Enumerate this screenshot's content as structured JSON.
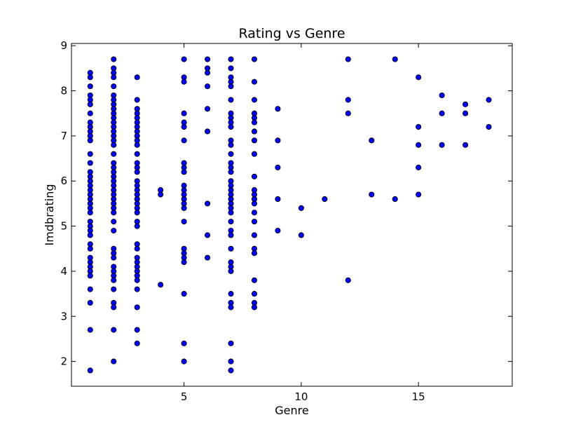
{
  "chart_data": {
    "type": "scatter",
    "title": "Rating vs Genre",
    "xlabel": "Genre",
    "ylabel": "Imdbrating",
    "xlim": [
      0.2,
      19
    ],
    "ylim": [
      1.45,
      9.05
    ],
    "xticks": [
      5,
      10,
      15
    ],
    "yticks": [
      2,
      3,
      4,
      5,
      6,
      7,
      8,
      9
    ],
    "grid": false,
    "marker_color": "#0000ff",
    "marker_edge_color": "#000000",
    "points": [
      [
        1,
        8.4
      ],
      [
        1,
        8.3
      ],
      [
        1,
        8.1
      ],
      [
        1,
        7.9
      ],
      [
        1,
        7.8
      ],
      [
        1,
        7.7
      ],
      [
        1,
        7.5
      ],
      [
        1,
        7.3
      ],
      [
        1,
        7.2
      ],
      [
        1,
        7.1
      ],
      [
        1,
        7.0
      ],
      [
        1,
        6.9
      ],
      [
        1,
        6.6
      ],
      [
        1,
        6.4
      ],
      [
        1,
        6.2
      ],
      [
        1,
        6.1
      ],
      [
        1,
        6.0
      ],
      [
        1,
        5.9
      ],
      [
        1,
        5.8
      ],
      [
        1,
        5.7
      ],
      [
        1,
        5.6
      ],
      [
        1,
        5.5
      ],
      [
        1,
        5.4
      ],
      [
        1,
        5.3
      ],
      [
        1,
        5.1
      ],
      [
        1,
        5.0
      ],
      [
        1,
        4.9
      ],
      [
        1,
        4.8
      ],
      [
        1,
        4.6
      ],
      [
        1,
        4.5
      ],
      [
        1,
        4.3
      ],
      [
        1,
        4.2
      ],
      [
        1,
        4.1
      ],
      [
        1,
        4.0
      ],
      [
        1,
        3.9
      ],
      [
        1,
        3.6
      ],
      [
        1,
        3.3
      ],
      [
        1,
        2.7
      ],
      [
        1,
        1.8
      ],
      [
        2,
        8.7
      ],
      [
        2,
        8.5
      ],
      [
        2,
        8.4
      ],
      [
        2,
        8.3
      ],
      [
        2,
        8.1
      ],
      [
        2,
        7.9
      ],
      [
        2,
        7.8
      ],
      [
        2,
        7.7
      ],
      [
        2,
        7.6
      ],
      [
        2,
        7.5
      ],
      [
        2,
        7.4
      ],
      [
        2,
        7.3
      ],
      [
        2,
        7.2
      ],
      [
        2,
        7.1
      ],
      [
        2,
        7.0
      ],
      [
        2,
        6.9
      ],
      [
        2,
        6.8
      ],
      [
        2,
        6.6
      ],
      [
        2,
        6.4
      ],
      [
        2,
        6.3
      ],
      [
        2,
        6.2
      ],
      [
        2,
        6.1
      ],
      [
        2,
        6.0
      ],
      [
        2,
        5.9
      ],
      [
        2,
        5.8
      ],
      [
        2,
        5.7
      ],
      [
        2,
        5.6
      ],
      [
        2,
        5.5
      ],
      [
        2,
        5.4
      ],
      [
        2,
        5.3
      ],
      [
        2,
        5.1
      ],
      [
        2,
        4.9
      ],
      [
        2,
        4.5
      ],
      [
        2,
        4.4
      ],
      [
        2,
        4.3
      ],
      [
        2,
        4.1
      ],
      [
        2,
        4.0
      ],
      [
        2,
        3.9
      ],
      [
        2,
        3.8
      ],
      [
        2,
        3.6
      ],
      [
        2,
        3.3
      ],
      [
        2,
        3.2
      ],
      [
        2,
        2.7
      ],
      [
        2,
        2.0
      ],
      [
        3,
        8.3
      ],
      [
        3,
        7.8
      ],
      [
        3,
        7.6
      ],
      [
        3,
        7.5
      ],
      [
        3,
        7.4
      ],
      [
        3,
        7.3
      ],
      [
        3,
        7.2
      ],
      [
        3,
        7.1
      ],
      [
        3,
        7.0
      ],
      [
        3,
        6.9
      ],
      [
        3,
        6.8
      ],
      [
        3,
        6.6
      ],
      [
        3,
        6.4
      ],
      [
        3,
        6.3
      ],
      [
        3,
        6.2
      ],
      [
        3,
        6.0
      ],
      [
        3,
        5.9
      ],
      [
        3,
        5.8
      ],
      [
        3,
        5.7
      ],
      [
        3,
        5.6
      ],
      [
        3,
        5.5
      ],
      [
        3,
        5.4
      ],
      [
        3,
        5.3
      ],
      [
        3,
        5.1
      ],
      [
        3,
        5.0
      ],
      [
        3,
        4.6
      ],
      [
        3,
        4.5
      ],
      [
        3,
        4.3
      ],
      [
        3,
        4.2
      ],
      [
        3,
        4.1
      ],
      [
        3,
        4.0
      ],
      [
        3,
        3.9
      ],
      [
        3,
        3.8
      ],
      [
        3,
        3.6
      ],
      [
        3,
        3.2
      ],
      [
        3,
        2.7
      ],
      [
        3,
        2.4
      ],
      [
        4,
        5.8
      ],
      [
        4,
        5.7
      ],
      [
        4,
        3.7
      ],
      [
        5,
        8.7
      ],
      [
        5,
        8.3
      ],
      [
        5,
        8.2
      ],
      [
        5,
        7.5
      ],
      [
        5,
        7.3
      ],
      [
        5,
        7.2
      ],
      [
        5,
        6.9
      ],
      [
        5,
        6.4
      ],
      [
        5,
        6.3
      ],
      [
        5,
        6.2
      ],
      [
        5,
        5.9
      ],
      [
        5,
        5.8
      ],
      [
        5,
        5.7
      ],
      [
        5,
        5.6
      ],
      [
        5,
        5.5
      ],
      [
        5,
        5.4
      ],
      [
        5,
        5.1
      ],
      [
        5,
        4.5
      ],
      [
        5,
        4.4
      ],
      [
        5,
        4.3
      ],
      [
        5,
        4.2
      ],
      [
        5,
        3.5
      ],
      [
        5,
        2.4
      ],
      [
        5,
        2.0
      ],
      [
        6,
        8.7
      ],
      [
        6,
        8.5
      ],
      [
        6,
        8.4
      ],
      [
        6,
        8.1
      ],
      [
        6,
        7.6
      ],
      [
        6,
        7.1
      ],
      [
        6,
        5.5
      ],
      [
        6,
        4.8
      ],
      [
        6,
        4.3
      ],
      [
        7,
        8.7
      ],
      [
        7,
        8.5
      ],
      [
        7,
        8.3
      ],
      [
        7,
        8.2
      ],
      [
        7,
        8.1
      ],
      [
        7,
        7.8
      ],
      [
        7,
        7.5
      ],
      [
        7,
        7.4
      ],
      [
        7,
        7.3
      ],
      [
        7,
        7.2
      ],
      [
        7,
        6.9
      ],
      [
        7,
        6.8
      ],
      [
        7,
        6.6
      ],
      [
        7,
        6.4
      ],
      [
        7,
        6.3
      ],
      [
        7,
        6.2
      ],
      [
        7,
        6.0
      ],
      [
        7,
        5.9
      ],
      [
        7,
        5.8
      ],
      [
        7,
        5.7
      ],
      [
        7,
        5.6
      ],
      [
        7,
        5.5
      ],
      [
        7,
        5.4
      ],
      [
        7,
        5.3
      ],
      [
        7,
        5.1
      ],
      [
        7,
        4.9
      ],
      [
        7,
        4.8
      ],
      [
        7,
        4.5
      ],
      [
        7,
        4.2
      ],
      [
        7,
        4.1
      ],
      [
        7,
        4.0
      ],
      [
        7,
        3.5
      ],
      [
        7,
        3.3
      ],
      [
        7,
        3.2
      ],
      [
        7,
        2.4
      ],
      [
        7,
        2.0
      ],
      [
        7,
        1.8
      ],
      [
        8,
        8.7
      ],
      [
        8,
        8.2
      ],
      [
        8,
        7.8
      ],
      [
        8,
        7.5
      ],
      [
        8,
        7.4
      ],
      [
        8,
        7.3
      ],
      [
        8,
        7.1
      ],
      [
        8,
        6.9
      ],
      [
        8,
        6.6
      ],
      [
        8,
        6.1
      ],
      [
        8,
        5.8
      ],
      [
        8,
        5.7
      ],
      [
        8,
        5.6
      ],
      [
        8,
        5.5
      ],
      [
        8,
        5.3
      ],
      [
        8,
        5.1
      ],
      [
        8,
        4.8
      ],
      [
        8,
        4.5
      ],
      [
        8,
        4.4
      ],
      [
        8,
        3.8
      ],
      [
        8,
        3.5
      ],
      [
        8,
        3.3
      ],
      [
        8,
        3.2
      ],
      [
        9,
        7.6
      ],
      [
        9,
        6.9
      ],
      [
        9,
        6.3
      ],
      [
        9,
        5.6
      ],
      [
        9,
        4.9
      ],
      [
        10,
        5.4
      ],
      [
        10,
        4.8
      ],
      [
        11,
        5.6
      ],
      [
        12,
        8.7
      ],
      [
        12,
        7.8
      ],
      [
        12,
        7.5
      ],
      [
        12,
        3.8
      ],
      [
        13,
        6.9
      ],
      [
        13,
        5.7
      ],
      [
        14,
        8.7
      ],
      [
        14,
        5.6
      ],
      [
        15,
        8.3
      ],
      [
        15,
        7.2
      ],
      [
        15,
        6.8
      ],
      [
        15,
        6.3
      ],
      [
        15,
        5.7
      ],
      [
        16,
        7.9
      ],
      [
        16,
        7.5
      ],
      [
        16,
        6.8
      ],
      [
        17,
        7.7
      ],
      [
        17,
        7.5
      ],
      [
        17,
        6.8
      ],
      [
        18,
        7.8
      ],
      [
        18,
        7.2
      ]
    ]
  }
}
